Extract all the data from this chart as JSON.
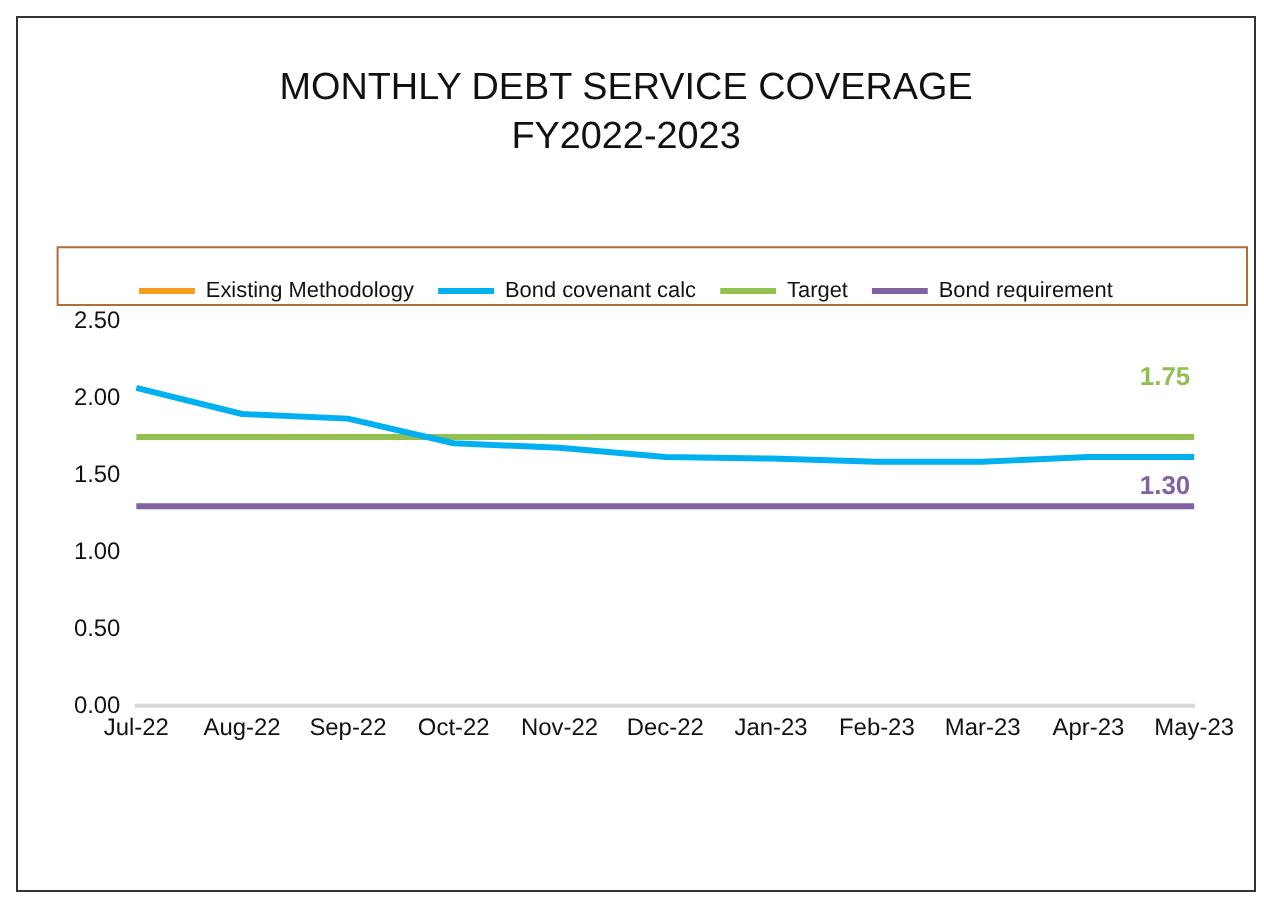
{
  "chart_data": {
    "type": "line",
    "title": "MONTHLY DEBT SERVICE COVERAGE",
    "subtitle": "FY2022-2023",
    "categories": [
      "Jul-22",
      "Aug-22",
      "Sep-22",
      "Oct-22",
      "Nov-22",
      "Dec-22",
      "Jan-23",
      "Feb-23",
      "Mar-23",
      "Apr-23",
      "May-23"
    ],
    "series": [
      {
        "name": "Existing Methodology",
        "color": "#f79b1d",
        "values": [
          null,
          null,
          null,
          null,
          null,
          null,
          null,
          null,
          null,
          null,
          null
        ]
      },
      {
        "name": "Bond covenant calc",
        "color": "#00b0f0",
        "values": [
          2.07,
          1.9,
          1.87,
          1.71,
          1.68,
          1.62,
          1.61,
          1.59,
          1.59,
          1.62,
          1.62
        ]
      },
      {
        "name": "Target",
        "color": "#92c050",
        "values": [
          1.75,
          1.75,
          1.75,
          1.75,
          1.75,
          1.75,
          1.75,
          1.75,
          1.75,
          1.75,
          1.75
        ],
        "value_labels": [
          null,
          null,
          null,
          null,
          null,
          null,
          null,
          null,
          null,
          null,
          "1.75"
        ]
      },
      {
        "name": "Bond requirement",
        "color": "#7f62a1",
        "values": [
          1.3,
          1.3,
          1.3,
          1.3,
          1.3,
          1.3,
          1.3,
          1.3,
          1.3,
          1.3,
          1.3
        ],
        "value_labels": [
          null,
          null,
          null,
          null,
          null,
          null,
          null,
          null,
          null,
          null,
          "1.30"
        ]
      }
    ],
    "ylim": [
      0,
      2.5
    ],
    "yticks": [
      {
        "value": 0,
        "label": "0.00"
      },
      {
        "value": 0.5,
        "label": "0.50"
      },
      {
        "value": 1,
        "label": "1.00"
      },
      {
        "value": 1.5,
        "label": "1.50"
      },
      {
        "value": 2,
        "label": "2.00"
      },
      {
        "value": 2.5,
        "label": "2.50"
      }
    ],
    "grid": false,
    "legend": "top",
    "marker": "none",
    "line_style": "solid"
  }
}
